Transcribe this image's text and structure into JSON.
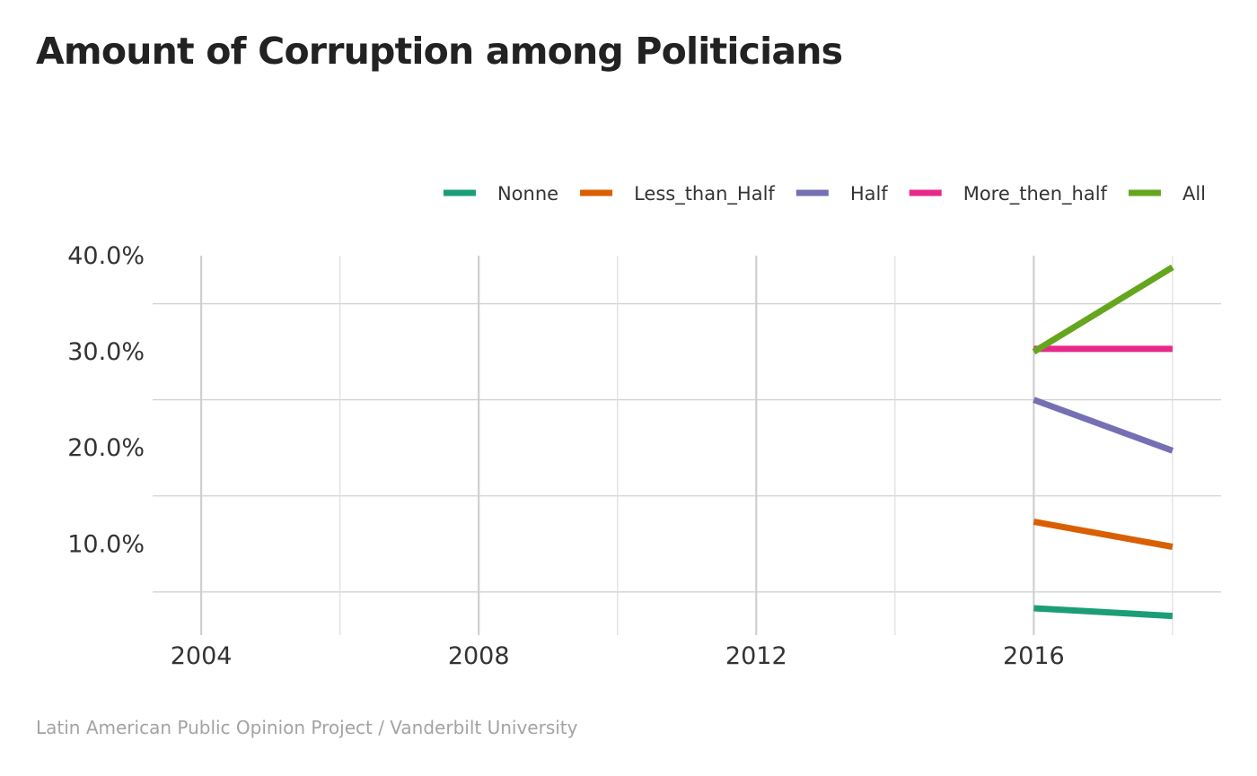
{
  "chart_data": {
    "type": "line",
    "title": "Amount of Corruption among Politicians",
    "xlabel": "",
    "ylabel": "",
    "source": "Latin American Public Opinion Project / Vanderbilt University",
    "x_ticks": [
      "2004",
      "2008",
      "2012",
      "2016"
    ],
    "y_ticks": [
      "40.0%",
      "30.0%",
      "20.0%",
      "10.0%"
    ],
    "xlim": [
      2003.3,
      2018.7
    ],
    "ylim": [
      0.5,
      40.0
    ],
    "grid": true,
    "legend_position": "top-right",
    "x": [
      2016,
      2018
    ],
    "series": [
      {
        "name": "Nonne",
        "color": "#1b9e77",
        "values": [
          3.3,
          2.5
        ]
      },
      {
        "name": "Less_than_Half",
        "color": "#d95f02",
        "values": [
          12.3,
          9.7
        ]
      },
      {
        "name": "Half",
        "color": "#7570b3",
        "values": [
          25.0,
          19.7
        ]
      },
      {
        "name": "More_then_half",
        "color": "#e7298a",
        "values": [
          30.3,
          30.3
        ]
      },
      {
        "name": "All",
        "color": "#66a61e",
        "values": [
          30.0,
          38.8
        ]
      }
    ]
  }
}
